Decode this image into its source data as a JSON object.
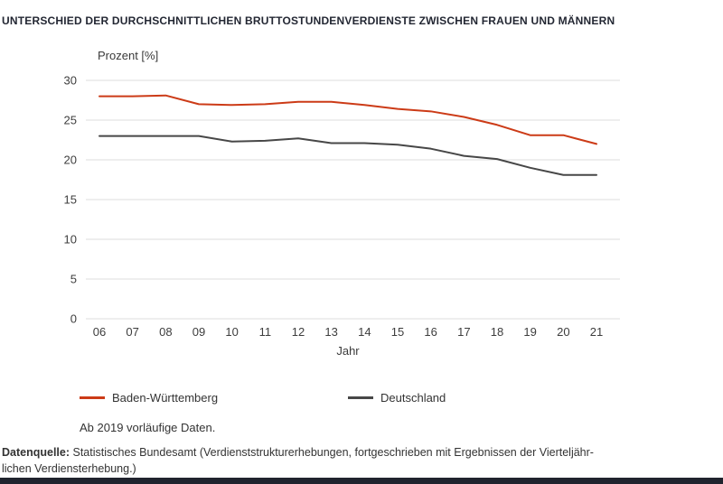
{
  "title": "UNTERSCHIED DER DURCHSCHNITTLICHEN BRUTTOSTUNDENVERDIENSTE ZWISCHEN FRAUEN UND MÄNNERN",
  "chart_data": {
    "type": "line",
    "title": "Unterschied der durchschnittlichen Bruttostundenverdienste zwischen Frauen und Männern",
    "y_axis_title": "Prozent [%]",
    "x_axis_label": "Jahr",
    "categories": [
      "06",
      "07",
      "08",
      "09",
      "10",
      "11",
      "12",
      "13",
      "14",
      "15",
      "16",
      "17",
      "18",
      "19",
      "20",
      "21"
    ],
    "series": [
      {
        "name": "Baden-Württemberg",
        "color": "#cc3b17",
        "values": [
          28.0,
          28.0,
          28.1,
          27.0,
          26.9,
          27.0,
          27.3,
          27.3,
          26.9,
          26.4,
          26.1,
          25.4,
          24.4,
          23.1,
          23.1,
          22.0
        ]
      },
      {
        "name": "Deutschland",
        "color": "#474747",
        "values": [
          23.0,
          23.0,
          23.0,
          23.0,
          22.3,
          22.4,
          22.7,
          22.1,
          22.1,
          21.9,
          21.4,
          20.5,
          20.1,
          19.0,
          18.1,
          18.1
        ]
      }
    ],
    "ylim": [
      0,
      30
    ],
    "yticks": [
      0,
      5,
      10,
      15,
      20,
      25,
      30
    ],
    "grid": "horizontal",
    "legend_position": "bottom",
    "note": "Ab 2019 vorläufige Daten."
  },
  "source": {
    "label": "Datenquelle:",
    "line1": "Statistisches Bundesamt (Verdienststrukturerhebungen, fortgeschrieben mit Ergebnissen der Vierteljähr-",
    "line2": "lichen Verdiensterhebung.)"
  },
  "colors": {
    "grid": "#dcdcdc",
    "axis_text": "#3d3d3d",
    "title_text": "#232733",
    "bottom_bar": "#20232e"
  }
}
